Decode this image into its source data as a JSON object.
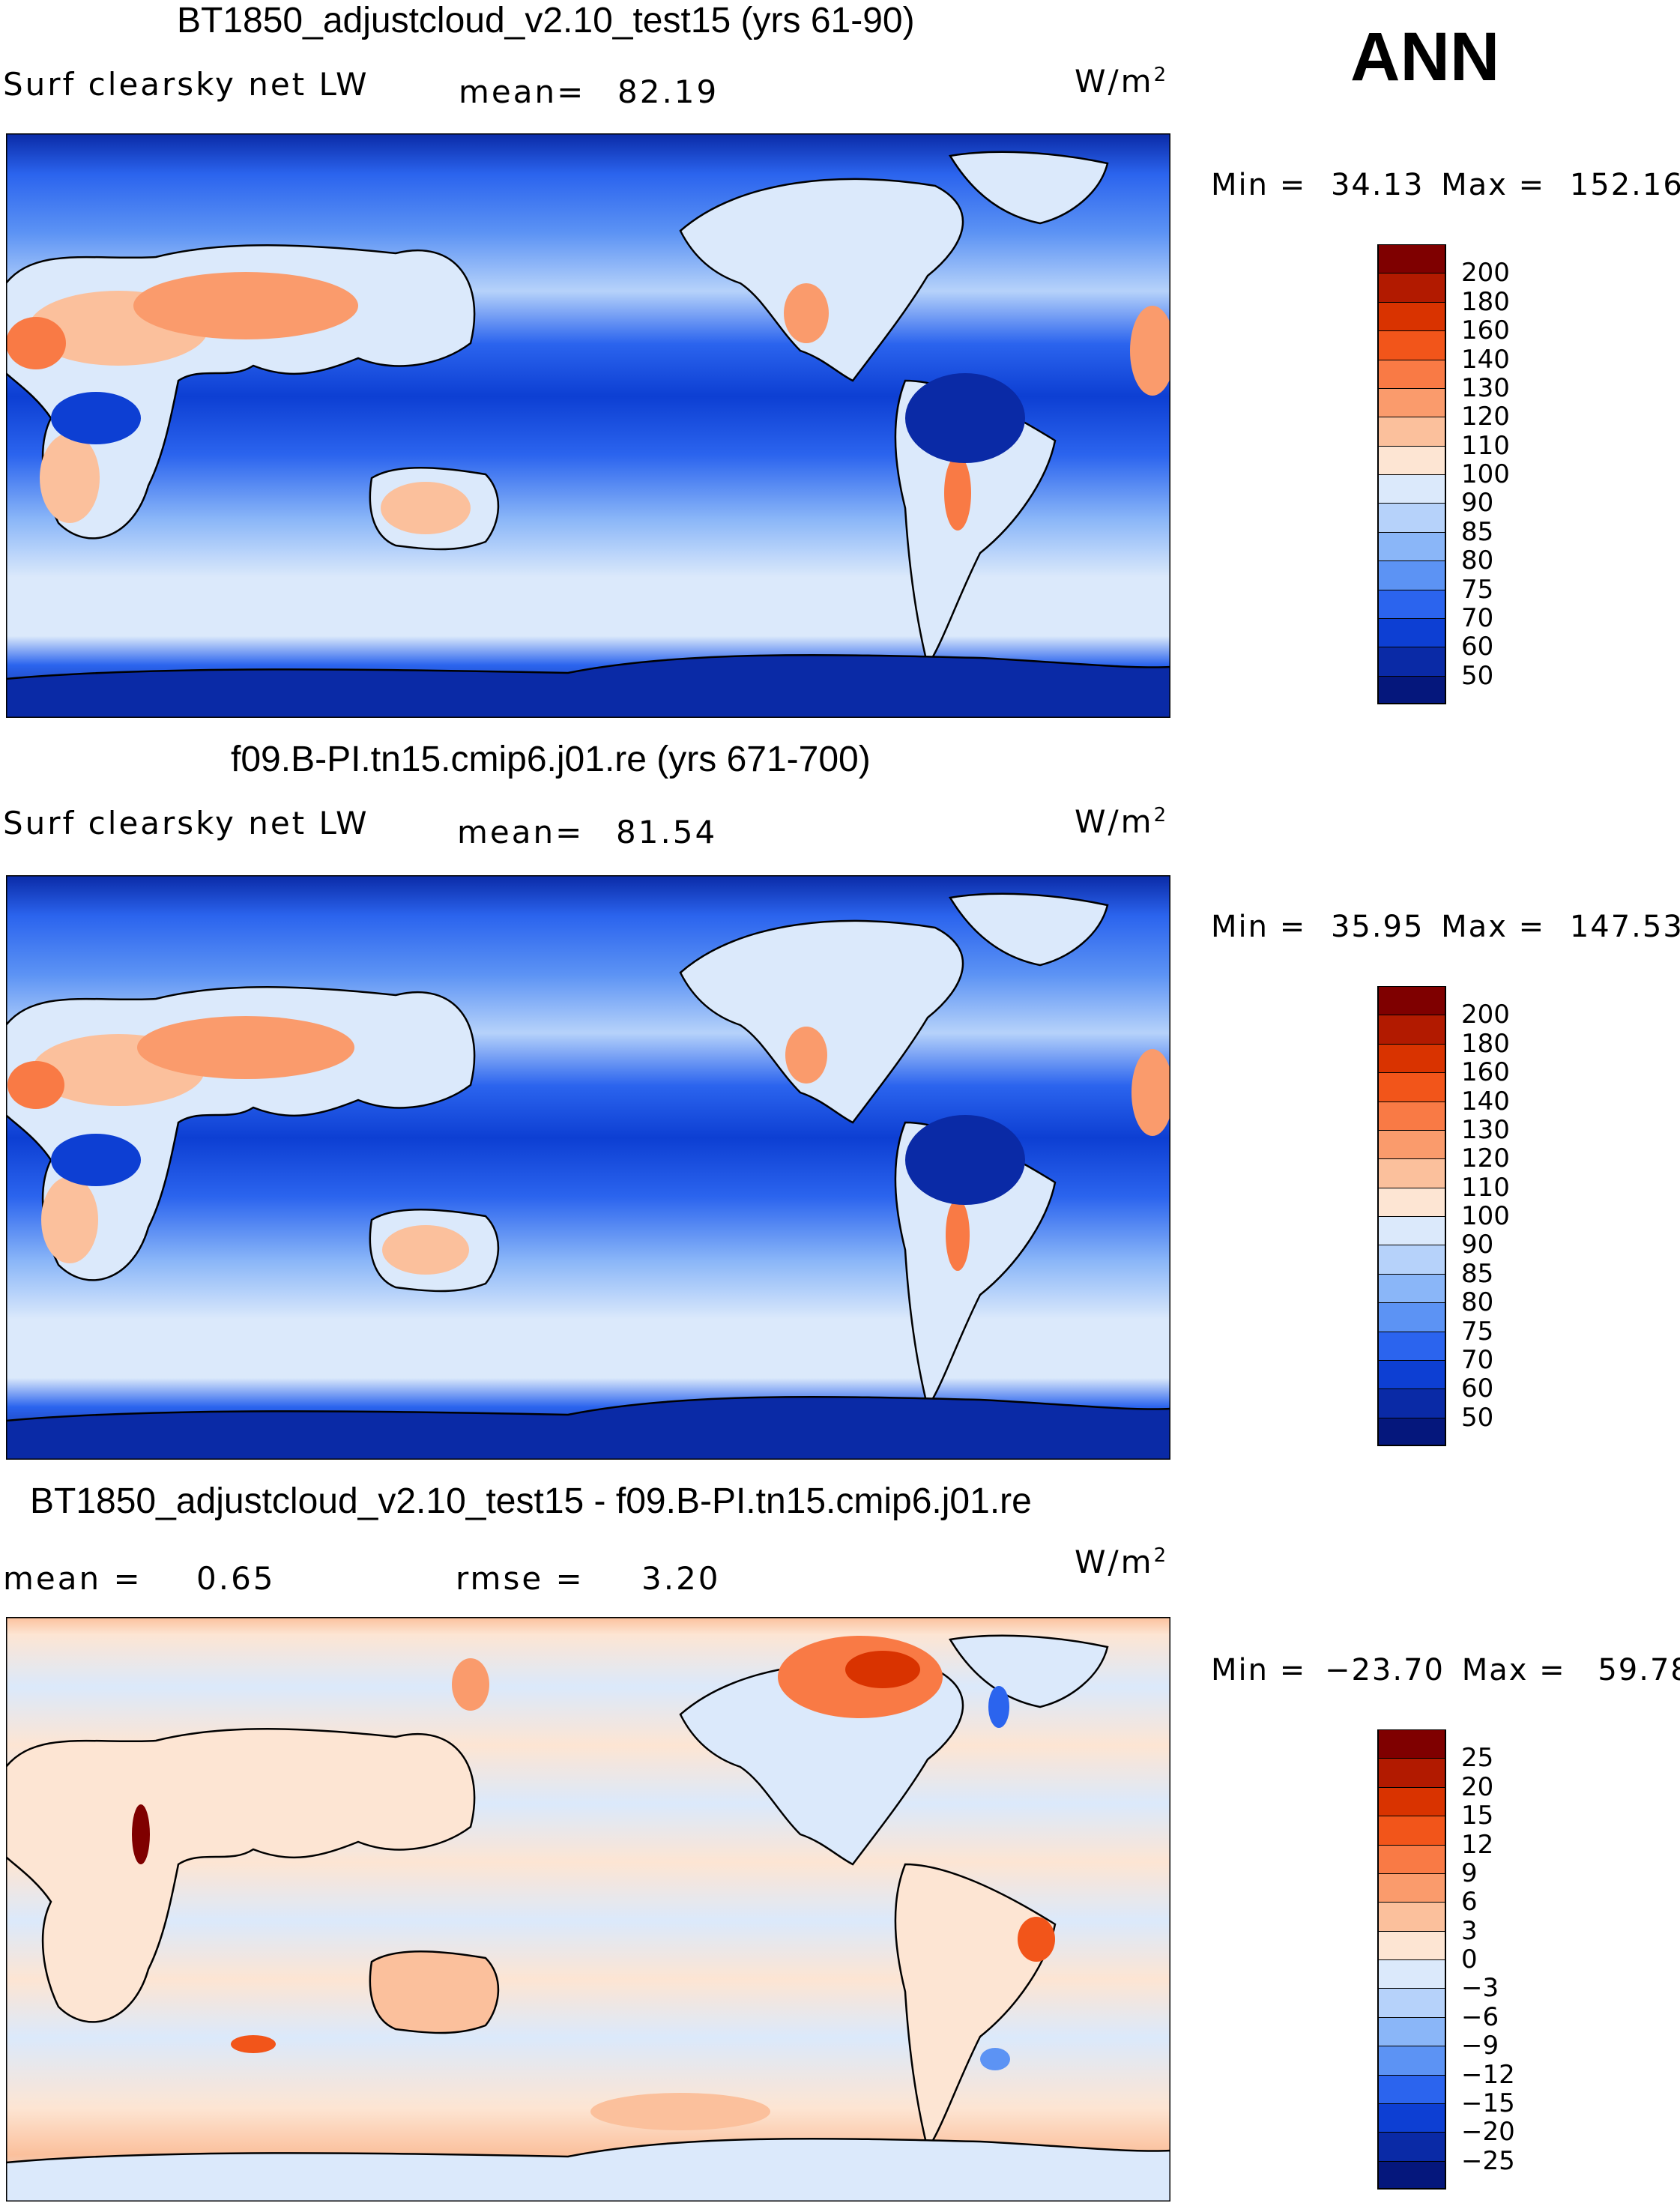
{
  "season": "ANN",
  "panels": [
    {
      "title": "BT1850_adjustcloud_v2.10_test15 (yrs 61-90)",
      "left_label": "Surf clearsky net LW",
      "mid_label": "mean=",
      "mid_value": "82.19",
      "units_base": "W/m",
      "units_sup": "2",
      "min_label": "Min =",
      "min_value": "34.13",
      "max_label": "Max =",
      "max_value": "152.16",
      "legend_levels": [
        "200",
        "180",
        "160",
        "140",
        "130",
        "120",
        "110",
        "100",
        "90",
        "85",
        "80",
        "75",
        "70",
        "60",
        "50"
      ],
      "legend_colors": [
        "#7f0000",
        "#b21a00",
        "#d93300",
        "#f2551a",
        "#f97a45",
        "#fa9b6c",
        "#fbc09c",
        "#fde5d3",
        "#dbe9fb",
        "#b6d2fa",
        "#8ab6f8",
        "#5c93f4",
        "#2b64ee",
        "#0d3fd3",
        "#0a2aa6",
        "#05177c"
      ]
    },
    {
      "title": "f09.B-PI.tn15.cmip6.j01.re (yrs 671-700)",
      "left_label": "Surf clearsky net LW",
      "mid_label": "mean=",
      "mid_value": "81.54",
      "units_base": "W/m",
      "units_sup": "2",
      "min_label": "Min =",
      "min_value": "35.95",
      "max_label": "Max =",
      "max_value": "147.53",
      "legend_levels": [
        "200",
        "180",
        "160",
        "140",
        "130",
        "120",
        "110",
        "100",
        "90",
        "85",
        "80",
        "75",
        "70",
        "60",
        "50"
      ],
      "legend_colors": [
        "#7f0000",
        "#b21a00",
        "#d93300",
        "#f2551a",
        "#f97a45",
        "#fa9b6c",
        "#fbc09c",
        "#fde5d3",
        "#dbe9fb",
        "#b6d2fa",
        "#8ab6f8",
        "#5c93f4",
        "#2b64ee",
        "#0d3fd3",
        "#0a2aa6",
        "#05177c"
      ]
    },
    {
      "title": "BT1850_adjustcloud_v2.10_test15 - f09.B-PI.tn15.cmip6.j01.re",
      "left_label": "mean =",
      "left_value": "0.65",
      "mid_label": "rmse =",
      "mid_value": "3.20",
      "units_base": "W/m",
      "units_sup": "2",
      "min_label": "Min =",
      "min_value": "−23.70",
      "max_label": "Max =",
      "max_value": "59.78",
      "legend_levels": [
        "25",
        "20",
        "15",
        "12",
        "9",
        "6",
        "3",
        "0",
        "−3",
        "−6",
        "−9",
        "−12",
        "−15",
        "−20",
        "−25"
      ],
      "legend_colors": [
        "#7f0000",
        "#b21a00",
        "#d93300",
        "#f2551a",
        "#f97a45",
        "#fa9b6c",
        "#fbc09c",
        "#fde5d3",
        "#dbe9fb",
        "#b6d2fa",
        "#8ab6f8",
        "#5c93f4",
        "#2b64ee",
        "#0d3fd3",
        "#0a2aa6",
        "#05177c"
      ]
    }
  ]
}
